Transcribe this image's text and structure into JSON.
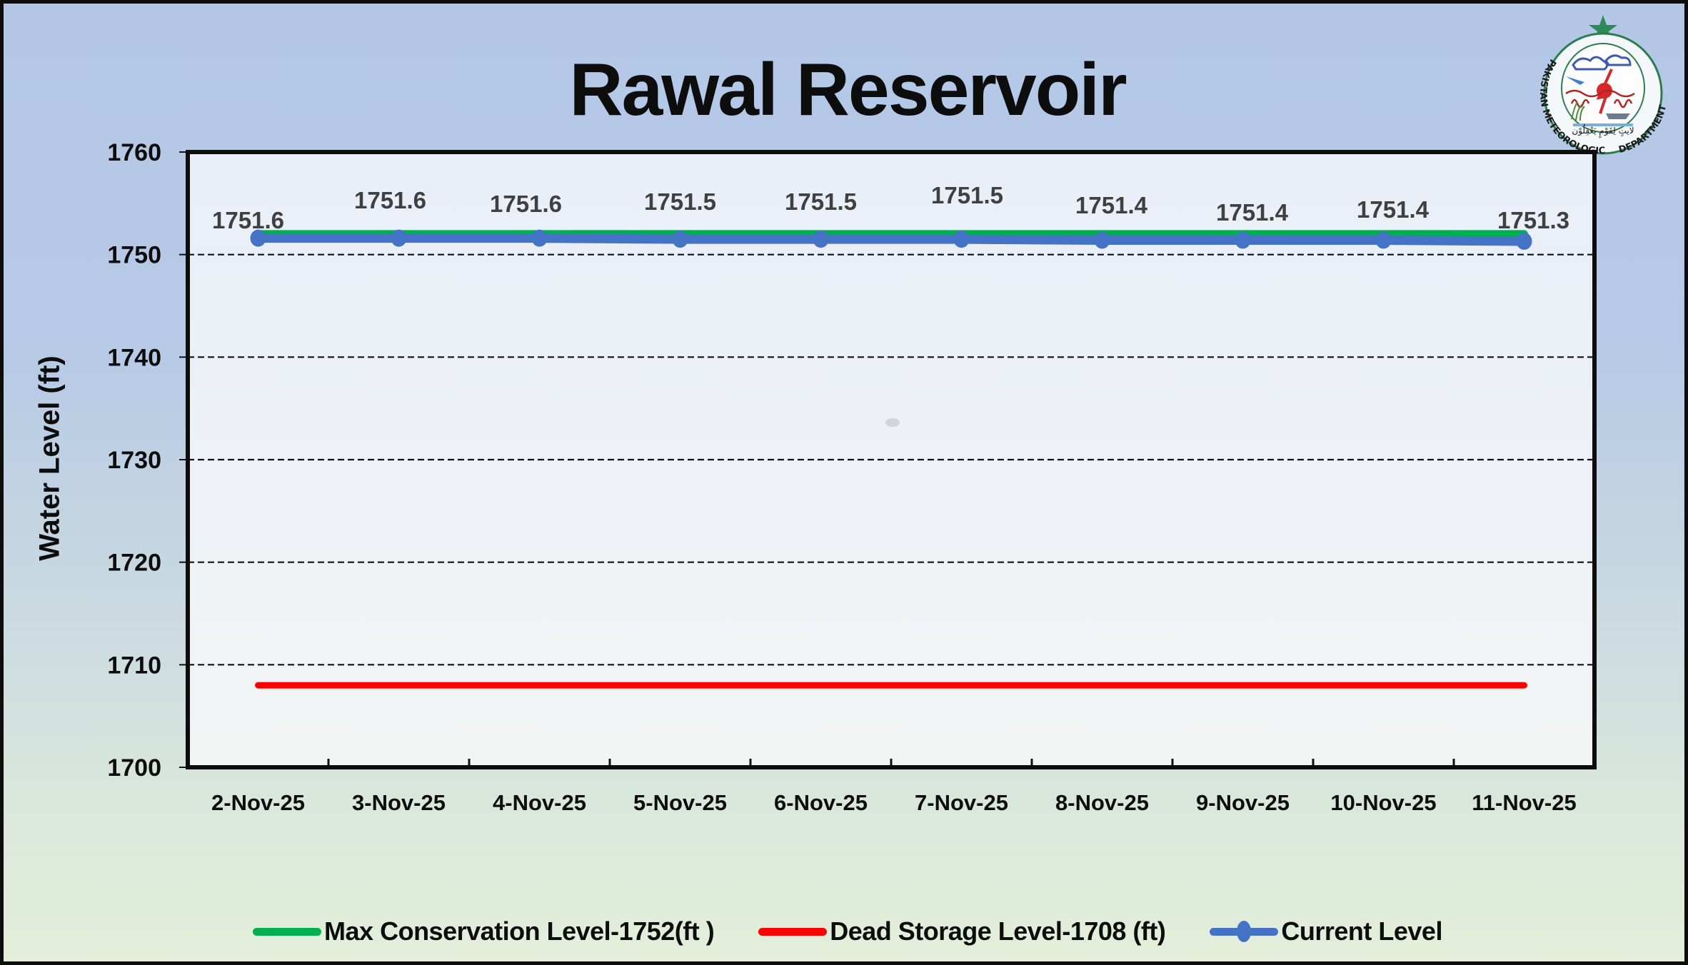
{
  "page": {
    "title": "Rawal Reservoir",
    "logo": {
      "name": "pakistan-meteorological-department-logo",
      "text": "PAKISTAN METEOROLOGICAL DEPARTMENT"
    },
    "y_axis_title": "Water Level (ft)",
    "legend": [
      {
        "label": "Max Conservation Level-1752(ft )",
        "color": "#00b050"
      },
      {
        "label": "Dead Storage Level-1708 (ft)",
        "color": "#ff0000"
      },
      {
        "label": "Current Level",
        "color": "#4472c4"
      }
    ],
    "y_ticks": [
      "1760",
      "1750",
      "1740",
      "1730",
      "1720",
      "1710",
      "1700"
    ],
    "x_ticks": [
      "2-Nov-25",
      "3-Nov-25",
      "4-Nov-25",
      "5-Nov-25",
      "6-Nov-25",
      "7-Nov-25",
      "8-Nov-25",
      "9-Nov-25",
      "10-Nov-25",
      "11-Nov-25"
    ],
    "data_labels": [
      "1751.6",
      "1751.6",
      "1751.6",
      "1751.5",
      "1751.5",
      "1751.5",
      "1751.4",
      "1751.4",
      "1751.4",
      "1751.3"
    ]
  },
  "chart_data": {
    "type": "line",
    "title": "Rawal Reservoir",
    "xlabel": "",
    "ylabel": "Water Level (ft)",
    "ylim": [
      1700,
      1760
    ],
    "yticks": [
      1700,
      1710,
      1720,
      1730,
      1740,
      1750,
      1760
    ],
    "grid": {
      "y": true,
      "style": "dashed",
      "x": false
    },
    "legend_position": "bottom",
    "categories": [
      "2-Nov-25",
      "3-Nov-25",
      "4-Nov-25",
      "5-Nov-25",
      "6-Nov-25",
      "7-Nov-25",
      "8-Nov-25",
      "9-Nov-25",
      "10-Nov-25",
      "11-Nov-25"
    ],
    "series": [
      {
        "name": "Max Conservation Level-1752(ft )",
        "color": "#00b050",
        "values": [
          1752,
          1752,
          1752,
          1752,
          1752,
          1752,
          1752,
          1752,
          1752,
          1752
        ]
      },
      {
        "name": "Dead Storage Level-1708 (ft)",
        "color": "#ff0000",
        "values": [
          1708,
          1708,
          1708,
          1708,
          1708,
          1708,
          1708,
          1708,
          1708,
          1708
        ]
      },
      {
        "name": "Current Level",
        "color": "#4472c4",
        "marker": "circle",
        "values": [
          1751.6,
          1751.6,
          1751.6,
          1751.5,
          1751.5,
          1751.5,
          1751.4,
          1751.4,
          1751.4,
          1751.3
        ],
        "data_labels": true
      }
    ]
  }
}
